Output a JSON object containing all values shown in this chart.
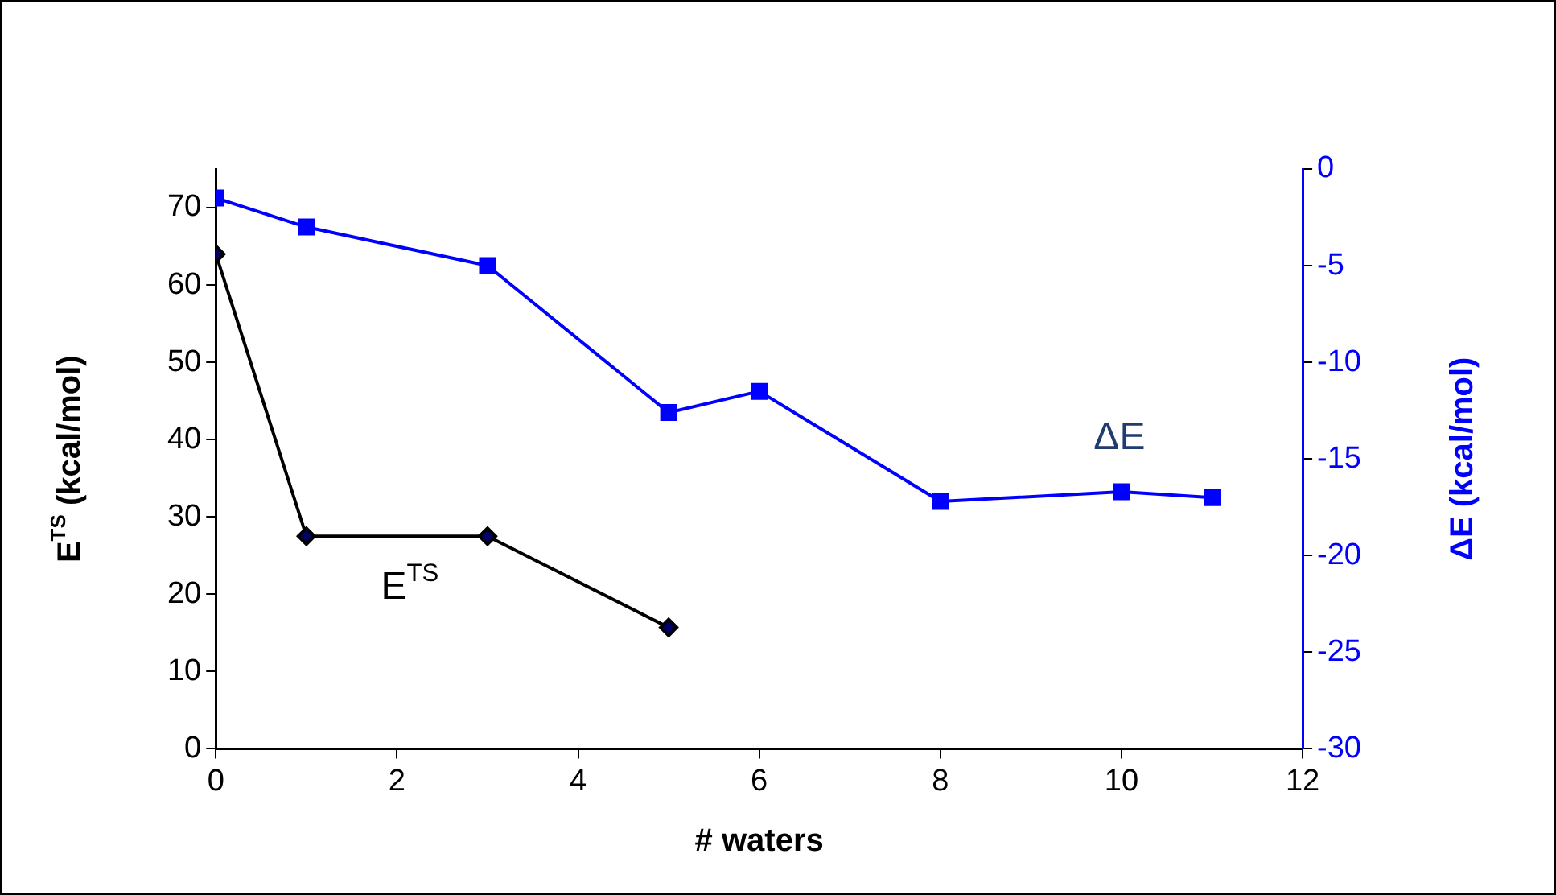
{
  "chart_data": {
    "type": "line",
    "xlabel": "# waters",
    "ylabel": "E$^{TS}$ (kcal/mol)",
    "y2label": "ΔE (kcal/mol)",
    "xlim": [
      0,
      12
    ],
    "xticks": [
      0,
      2,
      4,
      6,
      8,
      10,
      12
    ],
    "ylim": [
      0,
      75
    ],
    "yticks": [
      0,
      10,
      20,
      30,
      40,
      50,
      60,
      70
    ],
    "y2lim": [
      -30,
      0
    ],
    "y2ticks": [
      -30,
      -25,
      -20,
      -15,
      -10,
      -5,
      0
    ],
    "grid": false,
    "legend": false,
    "line_style": "solid",
    "series": [
      {
        "type": "line",
        "name": "E$^{TS}$",
        "x": [
          0,
          1,
          3,
          5
        ],
        "values": [
          64,
          27.5,
          27.5,
          15.7
        ],
        "color": "#000000",
        "marker": "diamond"
      },
      {
        "type": "line",
        "name": "ΔE",
        "axis": "y2",
        "x": [
          0,
          1,
          3,
          5,
          6,
          8,
          10,
          11
        ],
        "values": [
          -1.5,
          -3.0,
          -5.0,
          -12.6,
          -11.5,
          -17.2,
          -16.7,
          -17.0
        ],
        "color": "#0000ff",
        "marker": "square"
      }
    ]
  }
}
